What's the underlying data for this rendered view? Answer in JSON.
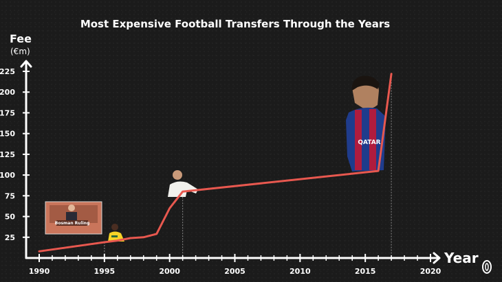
{
  "chart_data": {
    "type": "line",
    "title": "Most Expensive Football Transfers Through the Years",
    "ylabel": "Fee",
    "yunit": "(€m)",
    "xlabel": "Year",
    "xlim": [
      1990,
      2020
    ],
    "ylim": [
      0,
      225
    ],
    "xticks": [
      1990,
      1995,
      2000,
      2005,
      2010,
      2015,
      2020
    ],
    "yticks": [
      25,
      50,
      75,
      100,
      125,
      150,
      175,
      200,
      225
    ],
    "series": [
      {
        "color": "#e8584f",
        "points": [
          {
            "x": 1990,
            "y": 8
          },
          {
            "x": 1995,
            "y": 19
          },
          {
            "x": 1996,
            "y": 21
          },
          {
            "x": 1997,
            "y": 24
          },
          {
            "x": 1998,
            "y": 25
          },
          {
            "x": 1999,
            "y": 29
          },
          {
            "x": 2000,
            "y": 60
          },
          {
            "x": 2001,
            "y": 80
          },
          {
            "x": 2016,
            "y": 105
          },
          {
            "x": 2017,
            "y": 222
          }
        ]
      }
    ],
    "annotations": [
      {
        "label": "Bosman Ruling",
        "x": 1995
      }
    ],
    "grid": false
  },
  "colors": {
    "background": "#1b1b1b",
    "line": "#e8584f",
    "axis": "#ffffff"
  }
}
